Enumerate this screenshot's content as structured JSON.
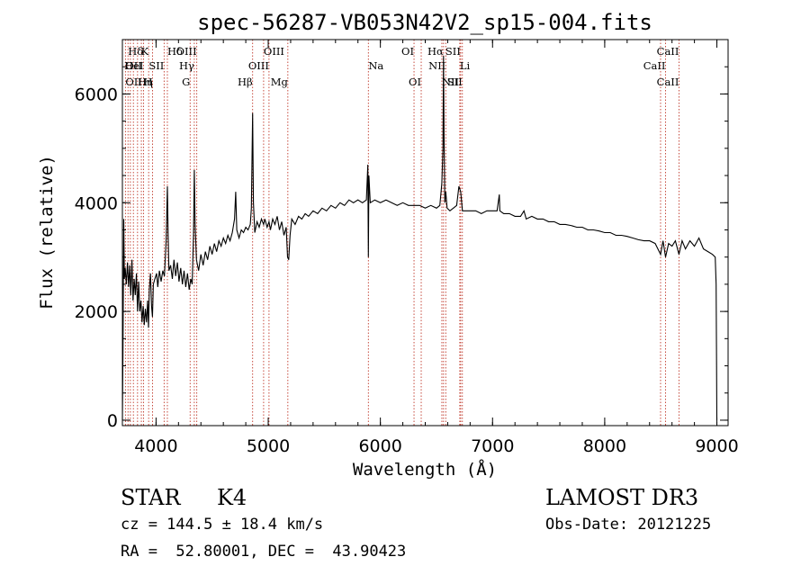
{
  "chart_data": {
    "type": "line",
    "title": "spec-56287-VB053N42V2_sp15-004.fits",
    "xlabel": "Wavelength (Å)",
    "ylabel": "Flux (relative)",
    "xlim": [
      3700,
      9100
    ],
    "ylim": [
      -100,
      7000
    ],
    "x_ticks": [
      4000,
      5000,
      6000,
      7000,
      8000,
      9000
    ],
    "y_ticks": [
      0,
      2000,
      4000,
      6000
    ],
    "spectrum": [
      [
        3700,
        0
      ],
      [
        3705,
        1200
      ],
      [
        3712,
        3700
      ],
      [
        3718,
        2600
      ],
      [
        3725,
        2800
      ],
      [
        3735,
        2500
      ],
      [
        3745,
        2900
      ],
      [
        3755,
        2450
      ],
      [
        3765,
        2850
      ],
      [
        3775,
        2300
      ],
      [
        3785,
        2950
      ],
      [
        3795,
        2200
      ],
      [
        3805,
        2600
      ],
      [
        3815,
        2300
      ],
      [
        3825,
        2700
      ],
      [
        3835,
        2000
      ],
      [
        3845,
        2550
      ],
      [
        3855,
        2000
      ],
      [
        3865,
        2200
      ],
      [
        3875,
        1800
      ],
      [
        3885,
        2100
      ],
      [
        3895,
        1750
      ],
      [
        3905,
        2050
      ],
      [
        3915,
        1800
      ],
      [
        3925,
        2200
      ],
      [
        3933,
        1700
      ],
      [
        3940,
        2400
      ],
      [
        3950,
        2700
      ],
      [
        3960,
        2100
      ],
      [
        3968,
        1900
      ],
      [
        3976,
        2500
      ],
      [
        3990,
        2600
      ],
      [
        4005,
        2700
      ],
      [
        4015,
        2450
      ],
      [
        4030,
        2750
      ],
      [
        4045,
        2550
      ],
      [
        4060,
        2750
      ],
      [
        4075,
        2650
      ],
      [
        4090,
        3300
      ],
      [
        4101,
        4300
      ],
      [
        4108,
        3400
      ],
      [
        4115,
        2750
      ],
      [
        4130,
        2850
      ],
      [
        4145,
        2600
      ],
      [
        4160,
        2950
      ],
      [
        4175,
        2650
      ],
      [
        4190,
        2900
      ],
      [
        4205,
        2550
      ],
      [
        4220,
        2800
      ],
      [
        4235,
        2500
      ],
      [
        4250,
        2750
      ],
      [
        4265,
        2450
      ],
      [
        4280,
        2700
      ],
      [
        4295,
        2400
      ],
      [
        4310,
        2600
      ],
      [
        4322,
        2500
      ],
      [
        4334,
        3400
      ],
      [
        4341,
        4600
      ],
      [
        4348,
        3600
      ],
      [
        4360,
        2950
      ],
      [
        4380,
        2750
      ],
      [
        4400,
        3050
      ],
      [
        4420,
        2850
      ],
      [
        4440,
        3100
      ],
      [
        4460,
        2950
      ],
      [
        4480,
        3200
      ],
      [
        4500,
        3050
      ],
      [
        4520,
        3250
      ],
      [
        4540,
        3100
      ],
      [
        4560,
        3300
      ],
      [
        4580,
        3200
      ],
      [
        4600,
        3350
      ],
      [
        4620,
        3250
      ],
      [
        4640,
        3400
      ],
      [
        4660,
        3300
      ],
      [
        4680,
        3450
      ],
      [
        4700,
        3700
      ],
      [
        4710,
        4200
      ],
      [
        4720,
        3500
      ],
      [
        4740,
        3350
      ],
      [
        4760,
        3500
      ],
      [
        4780,
        3450
      ],
      [
        4800,
        3550
      ],
      [
        4820,
        3500
      ],
      [
        4840,
        3600
      ],
      [
        4850,
        3900
      ],
      [
        4861,
        5650
      ],
      [
        4868,
        4000
      ],
      [
        4880,
        3450
      ],
      [
        4900,
        3650
      ],
      [
        4920,
        3550
      ],
      [
        4940,
        3700
      ],
      [
        4959,
        3600
      ],
      [
        4970,
        3700
      ],
      [
        4990,
        3550
      ],
      [
        5007,
        3650
      ],
      [
        5020,
        3500
      ],
      [
        5040,
        3700
      ],
      [
        5060,
        3600
      ],
      [
        5080,
        3750
      ],
      [
        5100,
        3500
      ],
      [
        5120,
        3650
      ],
      [
        5140,
        3400
      ],
      [
        5160,
        3550
      ],
      [
        5172,
        3000
      ],
      [
        5183,
        2950
      ],
      [
        5195,
        3400
      ],
      [
        5210,
        3700
      ],
      [
        5240,
        3600
      ],
      [
        5270,
        3750
      ],
      [
        5300,
        3700
      ],
      [
        5330,
        3800
      ],
      [
        5360,
        3750
      ],
      [
        5400,
        3850
      ],
      [
        5440,
        3800
      ],
      [
        5480,
        3900
      ],
      [
        5520,
        3850
      ],
      [
        5560,
        3950
      ],
      [
        5600,
        3900
      ],
      [
        5640,
        4000
      ],
      [
        5680,
        3950
      ],
      [
        5720,
        4050
      ],
      [
        5760,
        4000
      ],
      [
        5800,
        4050
      ],
      [
        5840,
        4000
      ],
      [
        5875,
        4050
      ],
      [
        5888,
        4700
      ],
      [
        5893,
        3000
      ],
      [
        5898,
        4500
      ],
      [
        5910,
        4000
      ],
      [
        5950,
        4050
      ],
      [
        6000,
        4000
      ],
      [
        6050,
        4050
      ],
      [
        6100,
        4000
      ],
      [
        6150,
        3950
      ],
      [
        6200,
        4000
      ],
      [
        6250,
        3950
      ],
      [
        6300,
        3950
      ],
      [
        6350,
        3950
      ],
      [
        6400,
        3900
      ],
      [
        6450,
        3950
      ],
      [
        6500,
        3900
      ],
      [
        6530,
        3950
      ],
      [
        6548,
        4350
      ],
      [
        6558,
        5000
      ],
      [
        6563,
        6700
      ],
      [
        6568,
        5200
      ],
      [
        6575,
        4000
      ],
      [
        6583,
        4200
      ],
      [
        6595,
        3900
      ],
      [
        6620,
        3850
      ],
      [
        6650,
        3900
      ],
      [
        6680,
        3950
      ],
      [
        6700,
        4300
      ],
      [
        6716,
        4200
      ],
      [
        6725,
        4000
      ],
      [
        6731,
        3850
      ],
      [
        6750,
        3850
      ],
      [
        6800,
        3850
      ],
      [
        6850,
        3850
      ],
      [
        6900,
        3800
      ],
      [
        6950,
        3850
      ],
      [
        7000,
        3850
      ],
      [
        7040,
        3850
      ],
      [
        7060,
        4150
      ],
      [
        7065,
        3850
      ],
      [
        7100,
        3800
      ],
      [
        7150,
        3800
      ],
      [
        7200,
        3750
      ],
      [
        7250,
        3750
      ],
      [
        7280,
        3850
      ],
      [
        7300,
        3700
      ],
      [
        7350,
        3750
      ],
      [
        7400,
        3700
      ],
      [
        7450,
        3700
      ],
      [
        7500,
        3650
      ],
      [
        7550,
        3650
      ],
      [
        7600,
        3600
      ],
      [
        7650,
        3600
      ],
      [
        7700,
        3580
      ],
      [
        7750,
        3550
      ],
      [
        7800,
        3550
      ],
      [
        7850,
        3500
      ],
      [
        7900,
        3500
      ],
      [
        7950,
        3480
      ],
      [
        8000,
        3450
      ],
      [
        8050,
        3450
      ],
      [
        8100,
        3400
      ],
      [
        8150,
        3400
      ],
      [
        8200,
        3380
      ],
      [
        8250,
        3350
      ],
      [
        8300,
        3320
      ],
      [
        8350,
        3300
      ],
      [
        8400,
        3300
      ],
      [
        8450,
        3250
      ],
      [
        8498,
        3050
      ],
      [
        8520,
        3300
      ],
      [
        8542,
        3000
      ],
      [
        8570,
        3250
      ],
      [
        8600,
        3200
      ],
      [
        8630,
        3300
      ],
      [
        8662,
        3050
      ],
      [
        8690,
        3300
      ],
      [
        8720,
        3150
      ],
      [
        8760,
        3300
      ],
      [
        8800,
        3200
      ],
      [
        8840,
        3350
      ],
      [
        8880,
        3150
      ],
      [
        8920,
        3100
      ],
      [
        8960,
        3050
      ],
      [
        8985,
        3000
      ],
      [
        8993,
        2500
      ],
      [
        8997,
        1000
      ],
      [
        9000,
        0
      ]
    ],
    "lines": [
      {
        "name": "Hδ",
        "x": 3750,
        "row": 0,
        "ax": "center"
      },
      {
        "name": "K",
        "x": 3934,
        "row": 0,
        "ax": "end"
      },
      {
        "name": "Hδ",
        "x": 4101,
        "row": 0,
        "ax": "center"
      },
      {
        "name": "OIII",
        "x": 4363,
        "row": 0,
        "ax": "end"
      },
      {
        "name": "OIII",
        "x": 4959,
        "row": 0,
        "ax": "start"
      },
      {
        "name": "OI",
        "x": 6300,
        "row": 0,
        "ax": "end"
      },
      {
        "name": "Hα",
        "x": 6563,
        "row": 0,
        "ax": "end"
      },
      {
        "name": "SII",
        "x": 6716,
        "row": 0,
        "ax": "end"
      },
      {
        "name": "CaII",
        "x": 8662,
        "row": 0,
        "ax": "end"
      },
      {
        "name": "OII",
        "x": 3727,
        "row": 1,
        "ax": "center"
      },
      {
        "name": "HeI",
        "x": 3889,
        "row": 1,
        "ax": "end"
      },
      {
        "name": "SII",
        "x": 4072,
        "row": 1,
        "ax": "end"
      },
      {
        "name": "Hγ",
        "x": 4341,
        "row": 1,
        "ax": "end"
      },
      {
        "name": "OIII",
        "x": 5007,
        "row": 1,
        "ax": "end"
      },
      {
        "name": "NII",
        "x": 6583,
        "row": 1,
        "ax": "end"
      },
      {
        "name": "Li",
        "x": 6708,
        "row": 1,
        "ax": "start"
      },
      {
        "name": "Na",
        "x": 5893,
        "row": 1,
        "ax": "center"
      },
      {
        "name": "CaII",
        "x": 8542,
        "row": 1,
        "ax": "end"
      },
      {
        "name": "OII",
        "x": 3727,
        "row": 2,
        "ax": "center"
      },
      {
        "name": "Hη",
        "x": 3835,
        "row": 2,
        "ax": "center"
      },
      {
        "name": "H",
        "x": 3969,
        "row": 2,
        "ax": "end"
      },
      {
        "name": "G",
        "x": 4304,
        "row": 2,
        "ax": "end"
      },
      {
        "name": "Hβ",
        "x": 4861,
        "row": 2,
        "ax": "end"
      },
      {
        "name": "Mg",
        "x": 5175,
        "row": 2,
        "ax": "end"
      },
      {
        "name": "OI",
        "x": 6364,
        "row": 2,
        "ax": "end"
      },
      {
        "name": "NII",
        "x": 6548,
        "row": 2,
        "ax": "start"
      },
      {
        "name": "SII",
        "x": 6731,
        "row": 2,
        "ax": "end"
      },
      {
        "name": "CaII",
        "x": 8662,
        "row": 2,
        "ax": "end"
      }
    ],
    "marker_x": [
      3727,
      3750,
      3771,
      3798,
      3835,
      3869,
      3889,
      3934,
      3969,
      4072,
      4101,
      4304,
      4341,
      4363,
      4861,
      4959,
      5007,
      5175,
      5893,
      6300,
      6364,
      6548,
      6563,
      6583,
      6708,
      6716,
      6731,
      8498,
      8542,
      8662
    ]
  },
  "info": {
    "object_class": "STAR",
    "subclass": "K4",
    "survey": "LAMOST DR3",
    "cz": "cz = 144.5 ± 18.4 km/s",
    "obs_date": "Obs-Date: 20121225",
    "coords": "RA =  52.80001, DEC =  43.90423"
  },
  "colors": {
    "marker": "#c0392b",
    "line": "#000000"
  }
}
